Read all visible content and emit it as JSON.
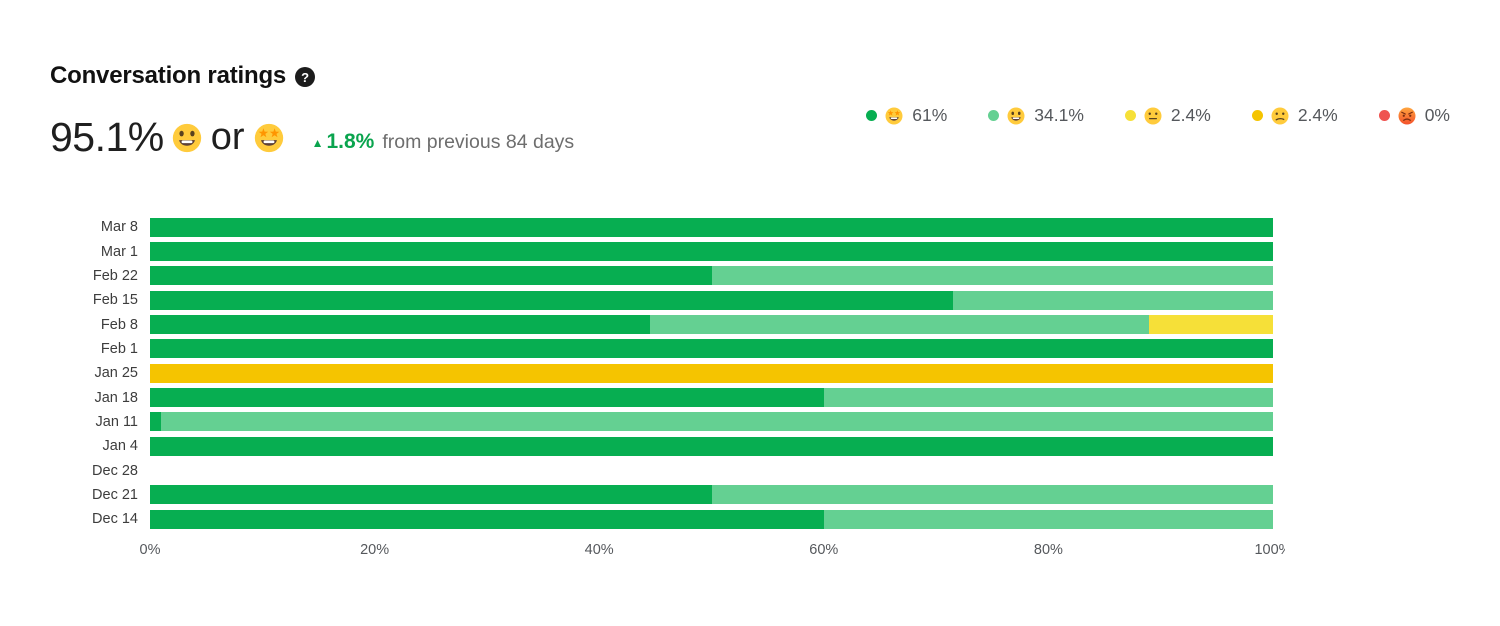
{
  "header": {
    "title": "Conversation ratings",
    "help_icon": "question-mark"
  },
  "summary": {
    "value": "95.1%",
    "emoji_1": "grinning",
    "conjunction": "or",
    "emoji_2": "star-struck",
    "delta": {
      "arrow": "▲",
      "value": "1.8%",
      "label": "from previous 84 days"
    }
  },
  "legend": {
    "items": [
      {
        "emoji": "star-struck",
        "pct": "61%",
        "color": "#07ae51"
      },
      {
        "emoji": "grinning",
        "pct": "34.1%",
        "color": "#64d092"
      },
      {
        "emoji": "neutral",
        "pct": "2.4%",
        "color": "#f6e038"
      },
      {
        "emoji": "confused",
        "pct": "2.4%",
        "color": "#f5c400"
      },
      {
        "emoji": "angry",
        "pct": "0%",
        "color": "#ef5350"
      }
    ]
  },
  "chart_data": {
    "type": "bar",
    "orientation": "horizontal",
    "stacked": true,
    "unit": "%",
    "title": "Conversation ratings",
    "x_axis": {
      "ticks": [
        "0%",
        "20%",
        "40%",
        "60%",
        "80%",
        "100%"
      ],
      "range": [
        0,
        100
      ]
    },
    "legend_position": "top-right",
    "colors": {
      "amazing": "#07ae51",
      "great": "#64d092",
      "ok": "#f6e038",
      "bad": "#f5c400",
      "terrible": "#ef5350"
    },
    "rows": [
      {
        "label": "Mar 8",
        "segments": [
          {
            "category": "amazing",
            "value": 100
          }
        ]
      },
      {
        "label": "Mar 1",
        "segments": [
          {
            "category": "amazing",
            "value": 100
          }
        ]
      },
      {
        "label": "Feb 22",
        "segments": [
          {
            "category": "amazing",
            "value": 50
          },
          {
            "category": "great",
            "value": 50
          }
        ]
      },
      {
        "label": "Feb 15",
        "segments": [
          {
            "category": "amazing",
            "value": 71.5
          },
          {
            "category": "great",
            "value": 28.5
          }
        ]
      },
      {
        "label": "Feb 8",
        "segments": [
          {
            "category": "amazing",
            "value": 44.5
          },
          {
            "category": "great",
            "value": 44.5
          },
          {
            "category": "ok",
            "value": 11
          }
        ]
      },
      {
        "label": "Feb 1",
        "segments": [
          {
            "category": "amazing",
            "value": 100
          }
        ]
      },
      {
        "label": "Jan 25",
        "segments": [
          {
            "category": "bad",
            "value": 100
          }
        ]
      },
      {
        "label": "Jan 18",
        "segments": [
          {
            "category": "amazing",
            "value": 60
          },
          {
            "category": "great",
            "value": 40
          }
        ]
      },
      {
        "label": "Jan 11",
        "segments": [
          {
            "category": "amazing",
            "value": 1
          },
          {
            "category": "great",
            "value": 99
          }
        ]
      },
      {
        "label": "Jan 4",
        "segments": [
          {
            "category": "amazing",
            "value": 100
          }
        ]
      },
      {
        "label": "Dec 28",
        "segments": []
      },
      {
        "label": "Dec 21",
        "segments": [
          {
            "category": "amazing",
            "value": 50
          },
          {
            "category": "great",
            "value": 50
          }
        ]
      },
      {
        "label": "Dec 14",
        "segments": [
          {
            "category": "amazing",
            "value": 60
          },
          {
            "category": "great",
            "value": 40
          }
        ]
      }
    ]
  }
}
